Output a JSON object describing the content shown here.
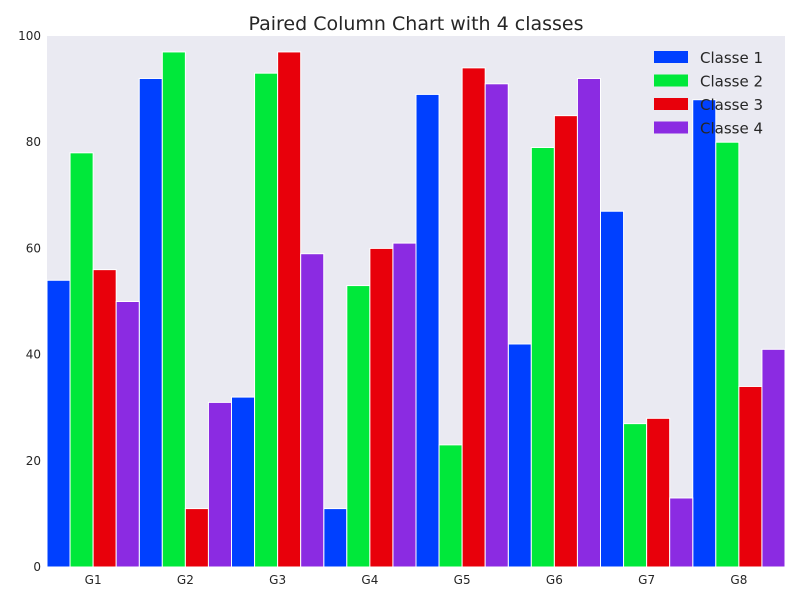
{
  "chart_data": {
    "type": "bar",
    "title": "Paired Column Chart with 4 classes",
    "xlabel": "",
    "ylabel": "",
    "categories": [
      "G1",
      "G2",
      "G3",
      "G4",
      "G5",
      "G6",
      "G7",
      "G8"
    ],
    "series": [
      {
        "name": "Classe 1",
        "color": "#0040ff",
        "values": [
          54,
          92,
          32,
          11,
          89,
          42,
          67,
          88
        ]
      },
      {
        "name": "Classe 2",
        "color": "#00e83a",
        "values": [
          78,
          97,
          93,
          53,
          23,
          79,
          27,
          80
        ]
      },
      {
        "name": "Classe 3",
        "color": "#e8000b",
        "values": [
          56,
          11,
          97,
          60,
          94,
          85,
          28,
          34
        ]
      },
      {
        "name": "Classe 4",
        "color": "#8b2be2",
        "values": [
          50,
          31,
          59,
          61,
          91,
          92,
          13,
          41
        ]
      }
    ],
    "ylim": [
      0,
      100
    ],
    "yticks": [
      0,
      20,
      40,
      60,
      80,
      100
    ],
    "grid": false,
    "legend_position": "top-right",
    "background_color": "#eaeaf2"
  }
}
